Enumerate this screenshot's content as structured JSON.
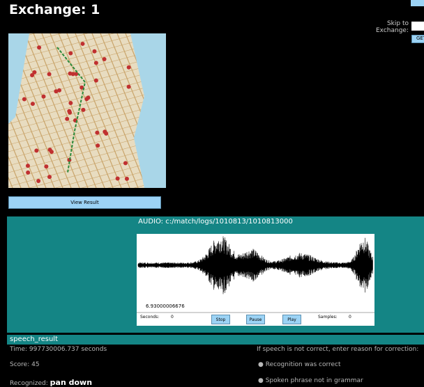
{
  "header": {
    "title": "Exchange: 1",
    "skip_label": "Skip to Exchange:",
    "go_button": "GET"
  },
  "map": {
    "button": "View Result"
  },
  "audio": {
    "title": "AUDIO: c:/match/logs/1010813/1010813000",
    "duration_label": "6.93000006676",
    "seconds_label": "Seconds:",
    "seconds_value": "0",
    "stop": "Stop",
    "pause": "Pause",
    "play": "Play",
    "samples_label": "Samples:",
    "samples_value": "0"
  },
  "result": {
    "heading": "speech_result",
    "time": "Time: 997730006.737 seconds",
    "score": "Score: 45",
    "recognized_label": "Recognized:",
    "recognized_value": "pan down",
    "correction_prompt": "If speech is not correct, enter reason for correction:",
    "options": [
      "Recognition was correct",
      "Spoken phrase not in grammar"
    ]
  }
}
